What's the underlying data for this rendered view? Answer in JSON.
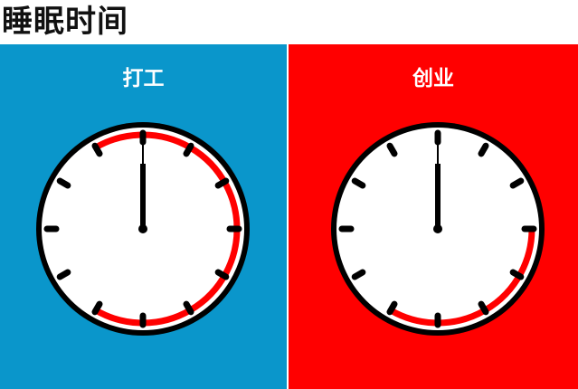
{
  "title": "睡眠时间",
  "colors": {
    "left_panel": "#0a96cb",
    "right_panel": "#ff0000",
    "sleep_arc": "#ff0000",
    "clock_rim": "#000000",
    "clock_face": "#ffffff"
  },
  "panels": [
    {
      "label": "打工",
      "sleep_from_hour": 11,
      "sleep_to_hour": 7
    },
    {
      "label": "创业",
      "sleep_from_hour": 3,
      "sleep_to_hour": 7
    }
  ]
}
